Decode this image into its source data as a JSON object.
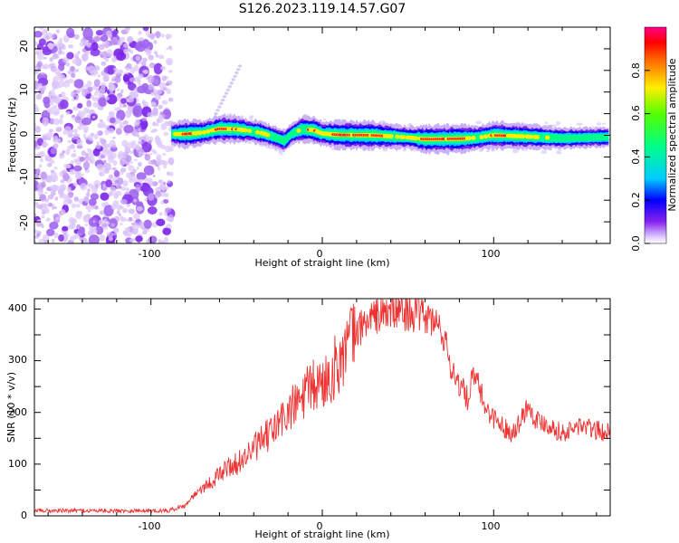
{
  "title": "S126.2023.119.14.57.G07",
  "chart_data": [
    {
      "type": "heatmap",
      "xlabel": "Height of straight line (km)",
      "ylabel": "Frequency (Hz)",
      "xlim": [
        -168,
        168
      ],
      "ylim": [
        -25,
        25
      ],
      "xticks": [
        -100,
        0,
        100
      ],
      "yticks": [
        -20,
        -10,
        0,
        10,
        20
      ],
      "colorbar": {
        "label": "Normalized spectral amplitude",
        "range": [
          0,
          1
        ],
        "ticks": [
          "0.0",
          "0.2",
          "0.4",
          "0.6",
          "0.8"
        ],
        "tick_values": [
          0.0,
          0.2,
          0.4,
          0.6,
          0.8
        ]
      },
      "noise_region_x": [
        -168,
        -88
      ],
      "ridge": {
        "x": [
          -88,
          -80,
          -70,
          -60,
          -50,
          -42,
          -35,
          -28,
          -22,
          -18,
          -12,
          -5,
          0,
          10,
          30,
          50,
          60,
          80,
          90,
          100,
          120,
          140,
          168
        ],
        "freq": [
          0.3,
          0.3,
          0.6,
          1.5,
          1.4,
          1.0,
          0.5,
          -0.4,
          -1.3,
          0.3,
          1.4,
          1.2,
          0.4,
          0.1,
          0.0,
          -0.5,
          -0.9,
          -0.8,
          -0.6,
          0.0,
          -0.3,
          -0.7,
          -0.4
        ],
        "amplitude": [
          0.5,
          0.95,
          0.7,
          0.9,
          0.95,
          0.6,
          0.7,
          0.5,
          0.6,
          0.5,
          0.8,
          0.9,
          0.7,
          0.95,
          0.95,
          0.6,
          0.95,
          0.95,
          0.7,
          0.9,
          0.75,
          0.5,
          0.4
        ]
      },
      "faint_streak": {
        "x": [
          -62,
          -48
        ],
        "freq": [
          5,
          16
        ]
      }
    },
    {
      "type": "line",
      "xlabel": "Height of straight line (km)",
      "ylabel": "SNR (10 * v/v)",
      "xlim": [
        -168,
        168
      ],
      "ylim": [
        0,
        420
      ],
      "xticks": [
        -100,
        0,
        100
      ],
      "yticks": [
        0,
        100,
        200,
        300,
        400
      ],
      "color": "#ee3333",
      "series": [
        {
          "name": "SNR",
          "x": [
            -168,
            -150,
            -130,
            -110,
            -90,
            -80,
            -75,
            -70,
            -65,
            -60,
            -55,
            -50,
            -45,
            -40,
            -35,
            -30,
            -25,
            -20,
            -15,
            -10,
            -5,
            0,
            5,
            10,
            15,
            20,
            25,
            30,
            35,
            40,
            45,
            50,
            55,
            60,
            65,
            70,
            72,
            75,
            80,
            85,
            88,
            92,
            95,
            100,
            105,
            110,
            115,
            120,
            125,
            130,
            135,
            140,
            145,
            150,
            155,
            160,
            168
          ],
          "y": [
            10,
            10,
            10,
            10,
            10,
            20,
            40,
            55,
            65,
            80,
            95,
            100,
            115,
            130,
            145,
            160,
            180,
            200,
            215,
            235,
            250,
            255,
            275,
            300,
            330,
            355,
            375,
            385,
            390,
            395,
            395,
            395,
            390,
            385,
            375,
            360,
            330,
            290,
            255,
            225,
            270,
            245,
            210,
            190,
            175,
            160,
            180,
            215,
            185,
            180,
            170,
            160,
            165,
            175,
            170,
            165,
            160
          ]
        }
      ]
    }
  ]
}
